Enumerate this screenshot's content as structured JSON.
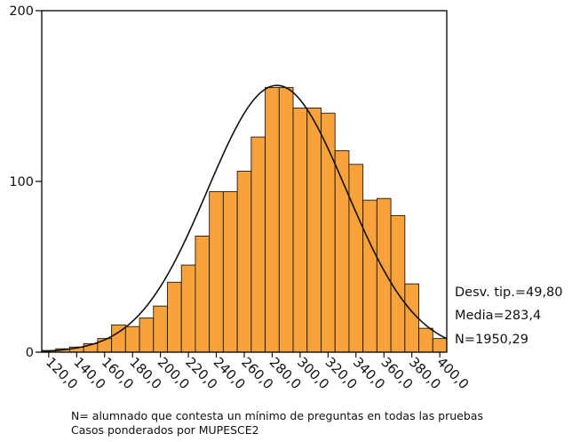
{
  "chart_data": {
    "type": "bar",
    "subtype": "histogram_with_normal_curve",
    "y_ticks": [
      0,
      100,
      200
    ],
    "ylim": [
      0,
      200
    ],
    "xlim": [
      115,
      405
    ],
    "x_tick_values": [
      120,
      140,
      160,
      180,
      200,
      220,
      240,
      260,
      280,
      300,
      320,
      340,
      360,
      380,
      400
    ],
    "x_tick_labels": [
      "120,0",
      "140,0",
      "160,0",
      "180,0",
      "200,0",
      "220,0",
      "240,0",
      "260,0",
      "280,0",
      "300,0",
      "320,0",
      "340,0",
      "360,0",
      "380,0",
      "400,0"
    ],
    "bin_edges": [
      115,
      125,
      135,
      145,
      155,
      165,
      175,
      185,
      195,
      205,
      215,
      225,
      235,
      245,
      255,
      265,
      275,
      285,
      295,
      305,
      315,
      325,
      335,
      345,
      355,
      365,
      375,
      385,
      395,
      405
    ],
    "values": [
      1,
      2,
      3,
      5,
      8,
      16,
      15,
      20,
      27,
      41,
      51,
      68,
      94,
      94,
      106,
      126,
      155,
      155,
      143,
      143,
      140,
      118,
      110,
      89,
      90,
      80,
      40,
      14,
      8
    ],
    "normal_curve": {
      "mean": 283.4,
      "std": 49.8,
      "n": 1950.29,
      "bin_width": 10
    },
    "colors": {
      "bar_fill": "#F9A13A",
      "bar_stroke": "#1a1a1a",
      "curve": "#111111"
    },
    "grid": false
  },
  "stats": {
    "std": "Desv. tip.=49,80",
    "mean": "Media=283,4",
    "n": "N=1950,29"
  },
  "notes": {
    "line1": "N= alumnado que contesta un mínimo de preguntas en todas las pruebas",
    "line2": "Casos ponderados por MUPESCE2"
  }
}
